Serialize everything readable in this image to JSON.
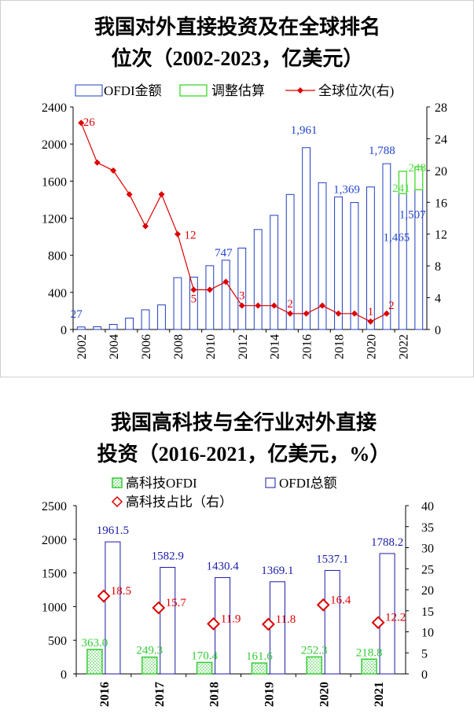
{
  "chart_data": [
    {
      "type": "bar+line",
      "title_line1": "我国对外直接投资及在全球排名",
      "title_line2": "位次（2002-2023，亿美元）",
      "legend": [
        "OFDI金额",
        "调整估算",
        "全球位次(右)"
      ],
      "years": [
        2002,
        2003,
        2004,
        2005,
        2006,
        2007,
        2008,
        2009,
        2010,
        2011,
        2012,
        2013,
        2014,
        2015,
        2016,
        2017,
        2018,
        2019,
        2020,
        2021,
        2022,
        2023
      ],
      "x_tick_labels": [
        "2002",
        "2004",
        "2006",
        "2008",
        "2010",
        "2012",
        "2014",
        "2016",
        "2018",
        "2020",
        "2022"
      ],
      "ofdi": [
        27,
        29,
        55,
        123,
        212,
        265,
        559,
        565,
        688,
        747,
        878,
        1078,
        1231,
        1456,
        1961,
        1583,
        1430,
        1369,
        1537,
        1788,
        1465,
        1507
      ],
      "adjustment": [
        null,
        null,
        null,
        null,
        null,
        null,
        null,
        null,
        null,
        null,
        null,
        null,
        null,
        null,
        null,
        null,
        null,
        null,
        null,
        null,
        241,
        248
      ],
      "rank": [
        26,
        21,
        20,
        17,
        13,
        17,
        12,
        5,
        5,
        6,
        3,
        3,
        3,
        2,
        2,
        3,
        2,
        2,
        1,
        2,
        null,
        null
      ],
      "ylim_left": [
        0,
        2400
      ],
      "yticks_left": [
        "0",
        "400",
        "800",
        "1200",
        "1600",
        "2000",
        "2400"
      ],
      "ylim_right": [
        0,
        28
      ],
      "yticks_right": [
        "0",
        "4",
        "8",
        "12",
        "16",
        "20",
        "24",
        "28"
      ],
      "bar_value_labels": [
        {
          "year": 2002,
          "text": "27"
        },
        {
          "year": 2011,
          "text": "747"
        },
        {
          "year": 2016,
          "text": "1,961"
        },
        {
          "year": 2019,
          "text": "1,369"
        },
        {
          "year": 2021,
          "text": "1,788"
        },
        {
          "year": 2022,
          "text": "1,465"
        },
        {
          "year": 2023,
          "text": "1,507"
        }
      ],
      "adj_value_labels": [
        {
          "year": 2022,
          "text": "241"
        },
        {
          "year": 2023,
          "text": "248"
        }
      ],
      "rank_value_labels": [
        {
          "year": 2002,
          "text": "26"
        },
        {
          "year": 2008,
          "text": "12"
        },
        {
          "year": 2009,
          "text": "5"
        },
        {
          "year": 2012,
          "text": "3"
        },
        {
          "year": 2015,
          "text": "2"
        },
        {
          "year": 2020,
          "text": "1"
        },
        {
          "year": 2021,
          "text": "2"
        }
      ],
      "colors": {
        "ofdi": "#1f3fbf",
        "adj": "#55dd44",
        "rank": "#dd0000",
        "label_ofdi": "#2244cc"
      }
    },
    {
      "type": "bar+scatter",
      "title_line1": "我国高科技与全行业对外直接",
      "title_line2": "投资（2016-2021，亿美元，%）",
      "legend": [
        "高科技OFDI",
        "OFDI总额",
        "高科技占比（右）"
      ],
      "categories": [
        "2016",
        "2017",
        "2018",
        "2019",
        "2020",
        "2021"
      ],
      "hightech": [
        363.0,
        249.3,
        170.4,
        161.6,
        252.3,
        218.8
      ],
      "hightech_labels": [
        "363.0",
        "249.3",
        "170.4",
        "161.6",
        "252.3",
        "218.8"
      ],
      "total": [
        1961.5,
        1582.9,
        1430.4,
        1369.1,
        1537.1,
        1788.2
      ],
      "total_labels": [
        "1961.5",
        "1582.9",
        "1430.4",
        "1369.1",
        "1537.1",
        "1788.2"
      ],
      "share": [
        18.5,
        15.7,
        11.9,
        11.8,
        16.4,
        12.2
      ],
      "share_labels": [
        "18.5",
        "15.7",
        "11.9",
        "11.8",
        "16.4",
        "12.2"
      ],
      "ylim_left": [
        0,
        2500
      ],
      "yticks_left": [
        "0",
        "500",
        "1000",
        "1500",
        "2000",
        "2500"
      ],
      "ylim_right": [
        0,
        40
      ],
      "yticks_right": [
        "0",
        "5",
        "10",
        "15",
        "20",
        "25",
        "30",
        "35",
        "40"
      ],
      "colors": {
        "hightech": "#33cc33",
        "total": "#1a1aaa",
        "share": "#dd0000"
      }
    }
  ]
}
